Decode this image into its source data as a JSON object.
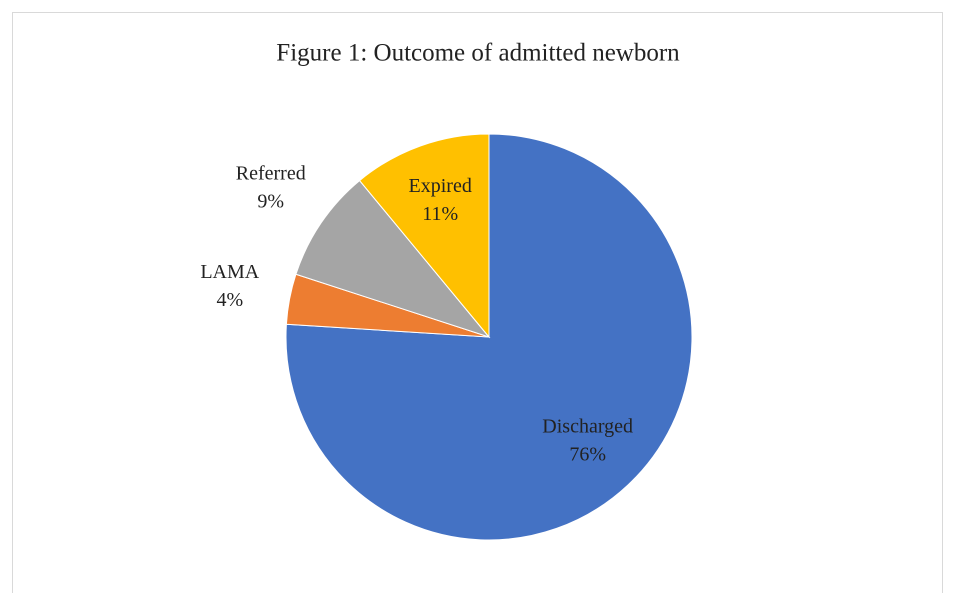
{
  "chart_data": {
    "type": "pie",
    "title": "Figure 1: Outcome of admitted newborn",
    "categories": [
      "Discharged",
      "LAMA",
      "Referred",
      "Expired"
    ],
    "values": [
      76,
      4,
      9,
      11
    ],
    "value_labels": [
      "76%",
      "4%",
      "9%",
      "11%"
    ],
    "colors": [
      "#4472c4",
      "#ed7d31",
      "#a5a5a5",
      "#ffc000"
    ]
  }
}
